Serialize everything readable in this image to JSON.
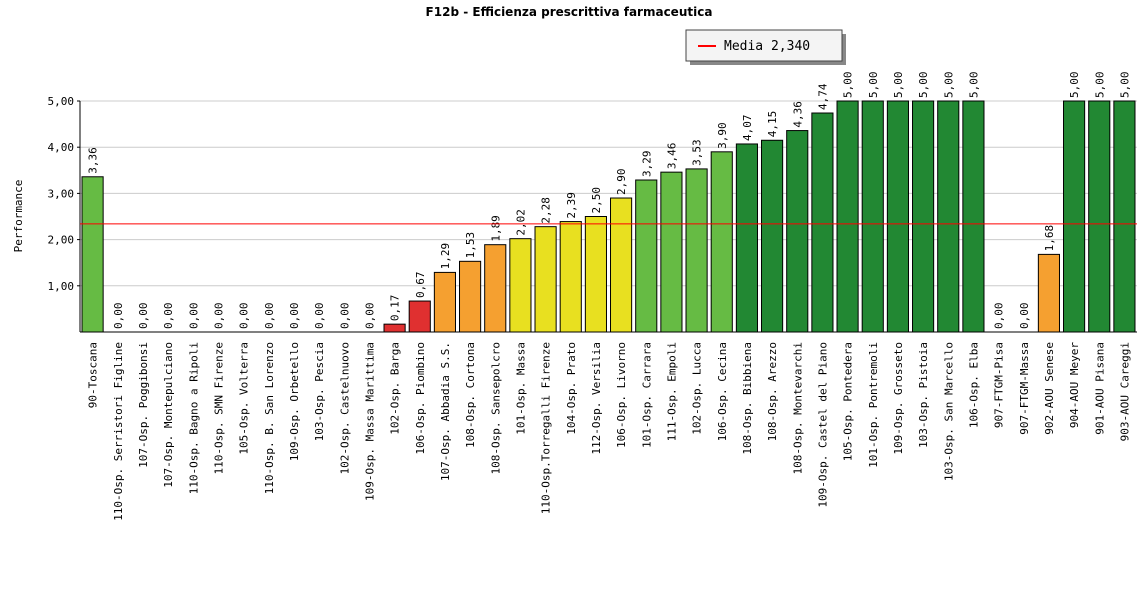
{
  "chart_data": {
    "type": "bar",
    "title": "F12b - Efficienza prescrittiva farmaceutica",
    "y_label": "Performance",
    "categories": [
      "90-Toscana",
      "110-Osp. Serristori Figline",
      "107-Osp. Poggibonsi",
      "107-Osp. Montepulciano",
      "110-Osp. Bagno a Ripoli",
      "110-Osp. SMN Firenze",
      "105-Osp. Volterra",
      "110-Osp. B. San Lorenzo",
      "109-Osp. Orbetello",
      "103-Osp. Pescia",
      "102-Osp. Castelnuovo",
      "109-Osp. Massa Marittima",
      "102-Osp. Barga",
      "106-Osp. Piombino",
      "107-Osp. Abbadia S.S.",
      "108-Osp. Cortona",
      "108-Osp. Sansepolcro",
      "101-Osp. Massa",
      "110-Osp.Torregalli Firenze",
      "104-Osp. Prato",
      "112-Osp. Versilia",
      "106-Osp. Livorno",
      "101-Osp. Carrara",
      "111-Osp. Empoli",
      "102-Osp. Lucca",
      "106-Osp. Cecina",
      "108-Osp. Bibbiena",
      "108-Osp. Arezzo",
      "108-Osp. Montevarchi",
      "109-Osp. Castel del Piano",
      "105-Osp. Pontedera",
      "101-Osp. Pontremoli",
      "109-Osp. Grosseto",
      "103-Osp. Pistoia",
      "103-Osp. San Marcello",
      "106-Osp. Elba",
      "907-FTGM-Pisa",
      "907-FTGM-Massa",
      "902-AOU Senese",
      "904-AOU Meyer",
      "901-AOU Pisana",
      "903-AOU Careggi"
    ],
    "values": [
      3.36,
      0,
      0,
      0,
      0,
      0,
      0,
      0,
      0,
      0,
      0,
      0,
      0.17,
      0.67,
      1.29,
      1.53,
      1.89,
      2.02,
      2.28,
      2.39,
      2.5,
      2.9,
      3.29,
      3.46,
      3.53,
      3.9,
      4.07,
      4.15,
      4.36,
      4.74,
      5,
      5,
      5,
      5,
      5,
      5,
      0,
      0,
      1.68,
      5,
      5,
      5
    ],
    "value_labels": [
      "3,36",
      "0,00",
      "0,00",
      "0,00",
      "0,00",
      "0,00",
      "0,00",
      "0,00",
      "0,00",
      "0,00",
      "0,00",
      "0,00",
      "0,17",
      "0,67",
      "1,29",
      "1,53",
      "1,89",
      "2,02",
      "2,28",
      "2,39",
      "2,50",
      "2,90",
      "3,29",
      "3,46",
      "3,53",
      "3,90",
      "4,07",
      "4,15",
      "4,36",
      "4,74",
      "5,00",
      "5,00",
      "5,00",
      "5,00",
      "5,00",
      "5,00",
      "0,00",
      "0,00",
      "1,68",
      "5,00",
      "5,00",
      "5,00"
    ],
    "colors": [
      "#66bb44",
      "#e03030",
      "#e03030",
      "#e03030",
      "#e03030",
      "#e03030",
      "#e03030",
      "#e03030",
      "#e03030",
      "#e03030",
      "#e03030",
      "#e03030",
      "#e03030",
      "#e03030",
      "#f5a030",
      "#f5a030",
      "#f5a030",
      "#e8e020",
      "#e8e020",
      "#e8e020",
      "#e8e020",
      "#e8e020",
      "#66bb44",
      "#66bb44",
      "#66bb44",
      "#66bb44",
      "#228833",
      "#228833",
      "#228833",
      "#228833",
      "#228833",
      "#228833",
      "#228833",
      "#228833",
      "#228833",
      "#228833",
      "#e03030",
      "#e03030",
      "#f5a030",
      "#228833",
      "#228833",
      "#228833"
    ],
    "ylim": [
      0,
      5
    ],
    "yticks": [
      {
        "value": 1,
        "label": "1,00"
      },
      {
        "value": 2,
        "label": "2,00"
      },
      {
        "value": 3,
        "label": "3,00"
      },
      {
        "value": 4,
        "label": "4,00"
      },
      {
        "value": 5,
        "label": "5,00"
      }
    ],
    "grid": true,
    "mean": {
      "value": 2.34,
      "label": "Media 2,340",
      "color": "#ff0000"
    }
  }
}
